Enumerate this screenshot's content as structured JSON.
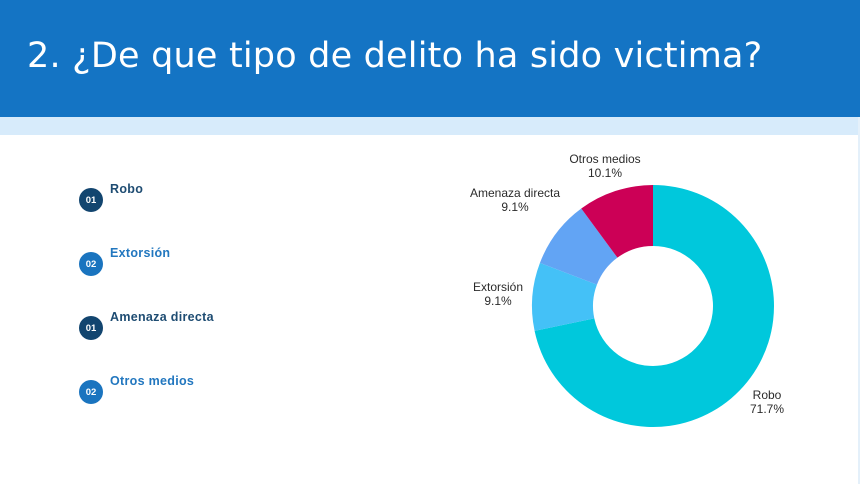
{
  "header": {
    "title": "2. ¿De que tipo de delito ha sido victima?",
    "background_color": "#1474c4"
  },
  "list": {
    "items": [
      {
        "number": "01",
        "label": "Robo",
        "badge_color": "#12456f"
      },
      {
        "number": "02",
        "label": "Extorsión",
        "badge_color": "#1a74bf"
      },
      {
        "number": "01",
        "label": "Amenaza directa",
        "badge_color": "#12456f"
      },
      {
        "number": "02",
        "label": "Otros medios",
        "badge_color": "#1a74bf"
      }
    ]
  },
  "chart_data": {
    "type": "pie",
    "subtype": "donut",
    "title": "",
    "categories": [
      "Robo",
      "Extorsión",
      "Amenaza directa",
      "Otros medios"
    ],
    "values": [
      71.7,
      9.1,
      9.1,
      10.1
    ],
    "unit": "%",
    "colors": [
      "#00c8dc",
      "#44c1f7",
      "#62a4f4",
      "#cc0056"
    ],
    "labels": [
      {
        "name": "Robo",
        "value": "71.7%"
      },
      {
        "name": "Extorsión",
        "value": "9.1%"
      },
      {
        "name": "Amenaza directa",
        "value": "9.1%"
      },
      {
        "name": "Otros medios",
        "value": "10.1%"
      }
    ],
    "start_angle_deg": 0,
    "direction": "clockwise",
    "legend": "none"
  }
}
